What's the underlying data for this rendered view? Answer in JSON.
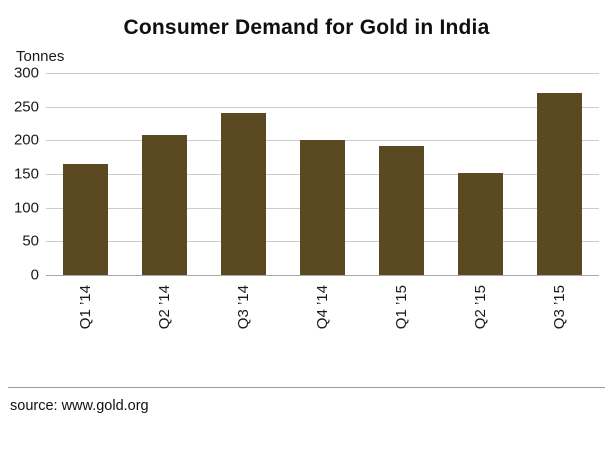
{
  "chart_data": {
    "type": "bar",
    "title": "Consumer Demand for Gold in India",
    "unit_label": "Tonnes",
    "xlabel": "",
    "ylabel": "Tonnes",
    "categories": [
      "Q1 ’14",
      "Q2 ’14",
      "Q3 ’14",
      "Q4 ’14",
      "Q1 ’15",
      "Q2 ’15",
      "Q3 ’15"
    ],
    "values": [
      165,
      208,
      240,
      200,
      192,
      152,
      270
    ],
    "ylim": [
      0,
      300
    ],
    "yticks": [
      0,
      50,
      100,
      150,
      200,
      250,
      300
    ],
    "grid": true,
    "legend": "none",
    "bar_color": "#5b4a21",
    "gridline_color": "#cccccc"
  },
  "source": "source: www.gold.org"
}
